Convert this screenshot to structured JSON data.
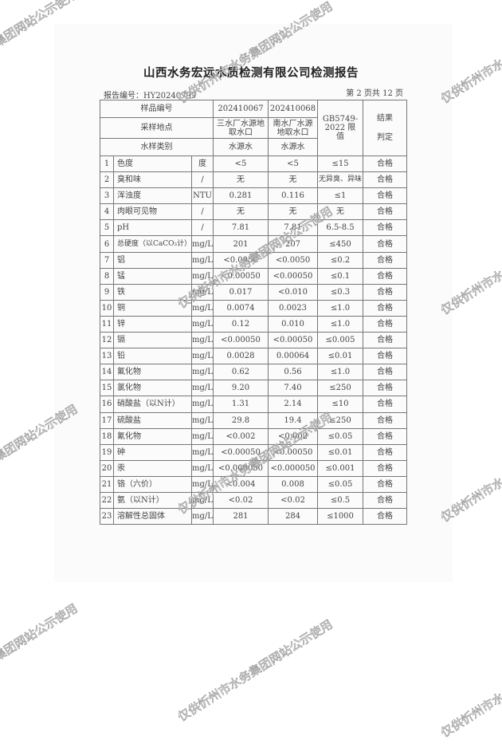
{
  "title": "山西水务宏远水质检测有限公司检测报告",
  "report_no": "报告编号：HY20240799",
  "page_info": "第 2 页共 12 页",
  "header": {
    "sample_no_label": "样品编号",
    "sample_no_1": "202410067",
    "sample_no_2": "202410068",
    "site_label": "采样地点",
    "site_1": "三水厂水源地取水口",
    "site_2": "南水厂水源地取水口",
    "type_label": "水样类别",
    "type_1": "水源水",
    "type_2": "水源水",
    "limit_label": "GB5749-2022 限值",
    "result_label": "结果判定"
  },
  "rows": [
    {
      "no": "1",
      "item": "色度",
      "unit": "度",
      "v1": "<5",
      "v2": "<5",
      "limit": "≤15",
      "result": "合格"
    },
    {
      "no": "2",
      "item": "臭和味",
      "unit": "/",
      "v1": "无",
      "v2": "无",
      "limit": "无异臭、异味",
      "result": "合格"
    },
    {
      "no": "3",
      "item": "浑浊度",
      "unit": "NTU",
      "v1": "0.281",
      "v2": "0.116",
      "limit": "≤1",
      "result": "合格"
    },
    {
      "no": "4",
      "item": "肉眼可见物",
      "unit": "/",
      "v1": "无",
      "v2": "无",
      "limit": "无",
      "result": "合格"
    },
    {
      "no": "5",
      "item": "pH",
      "unit": "/",
      "v1": "7.81",
      "v2": "7.81",
      "limit": "6.5-8.5",
      "result": "合格"
    },
    {
      "no": "6",
      "item": "总硬度（以CaCO₃计）",
      "unit": "mg/L",
      "v1": "201",
      "v2": "207",
      "limit": "≤450",
      "result": "合格"
    },
    {
      "no": "7",
      "item": "铝",
      "unit": "mg/L",
      "v1": "<0.0050",
      "v2": "<0.0050",
      "limit": "≤0.2",
      "result": "合格"
    },
    {
      "no": "8",
      "item": "锰",
      "unit": "mg/L",
      "v1": "<0.00050",
      "v2": "<0.00050",
      "limit": "≤0.1",
      "result": "合格"
    },
    {
      "no": "9",
      "item": "铁",
      "unit": "mg/L",
      "v1": "0.017",
      "v2": "<0.010",
      "limit": "≤0.3",
      "result": "合格"
    },
    {
      "no": "10",
      "item": "铜",
      "unit": "mg/L",
      "v1": "0.0074",
      "v2": "0.0023",
      "limit": "≤1.0",
      "result": "合格"
    },
    {
      "no": "11",
      "item": "锌",
      "unit": "mg/L",
      "v1": "0.12",
      "v2": "0.010",
      "limit": "≤1.0",
      "result": "合格"
    },
    {
      "no": "12",
      "item": "镉",
      "unit": "mg/L",
      "v1": "<0.00050",
      "v2": "<0.00050",
      "limit": "≤0.005",
      "result": "合格"
    },
    {
      "no": "13",
      "item": "铅",
      "unit": "mg/L",
      "v1": "0.0028",
      "v2": "0.00064",
      "limit": "≤0.01",
      "result": "合格"
    },
    {
      "no": "14",
      "item": "氟化物",
      "unit": "mg/L",
      "v1": "0.62",
      "v2": "0.56",
      "limit": "≤1.0",
      "result": "合格"
    },
    {
      "no": "15",
      "item": "氯化物",
      "unit": "mg/L",
      "v1": "9.20",
      "v2": "7.40",
      "limit": "≤250",
      "result": "合格"
    },
    {
      "no": "16",
      "item": "硝酸盐（以N计）",
      "unit": "mg/L",
      "v1": "1.31",
      "v2": "2.14",
      "limit": "≤10",
      "result": "合格"
    },
    {
      "no": "17",
      "item": "硫酸盐",
      "unit": "mg/L",
      "v1": "29.8",
      "v2": "19.4",
      "limit": "≤250",
      "result": "合格"
    },
    {
      "no": "18",
      "item": "氰化物",
      "unit": "mg/L",
      "v1": "<0.002",
      "v2": "<0.002",
      "limit": "≤0.05",
      "result": "合格"
    },
    {
      "no": "19",
      "item": "砷",
      "unit": "mg/L",
      "v1": "<0.00050",
      "v2": "<0.00050",
      "limit": "≤0.01",
      "result": "合格"
    },
    {
      "no": "20",
      "item": "汞",
      "unit": "mg/L",
      "v1": "<0.000050",
      "v2": "<0.000050",
      "limit": "≤0.001",
      "result": "合格"
    },
    {
      "no": "21",
      "item": "铬（六价）",
      "unit": "mg/L",
      "v1": "<0.004",
      "v2": "0.008",
      "limit": "≤0.05",
      "result": "合格"
    },
    {
      "no": "22",
      "item": "氨（以N计）",
      "unit": "mg/L",
      "v1": "<0.02",
      "v2": "<0.02",
      "limit": "≤0.5",
      "result": "合格"
    },
    {
      "no": "23",
      "item": "溶解性总固体",
      "unit": "mg/L",
      "v1": "281",
      "v2": "284",
      "limit": "≤1000",
      "result": "合格"
    }
  ],
  "watermark": "仅供忻州市水务集团网站公示使用"
}
